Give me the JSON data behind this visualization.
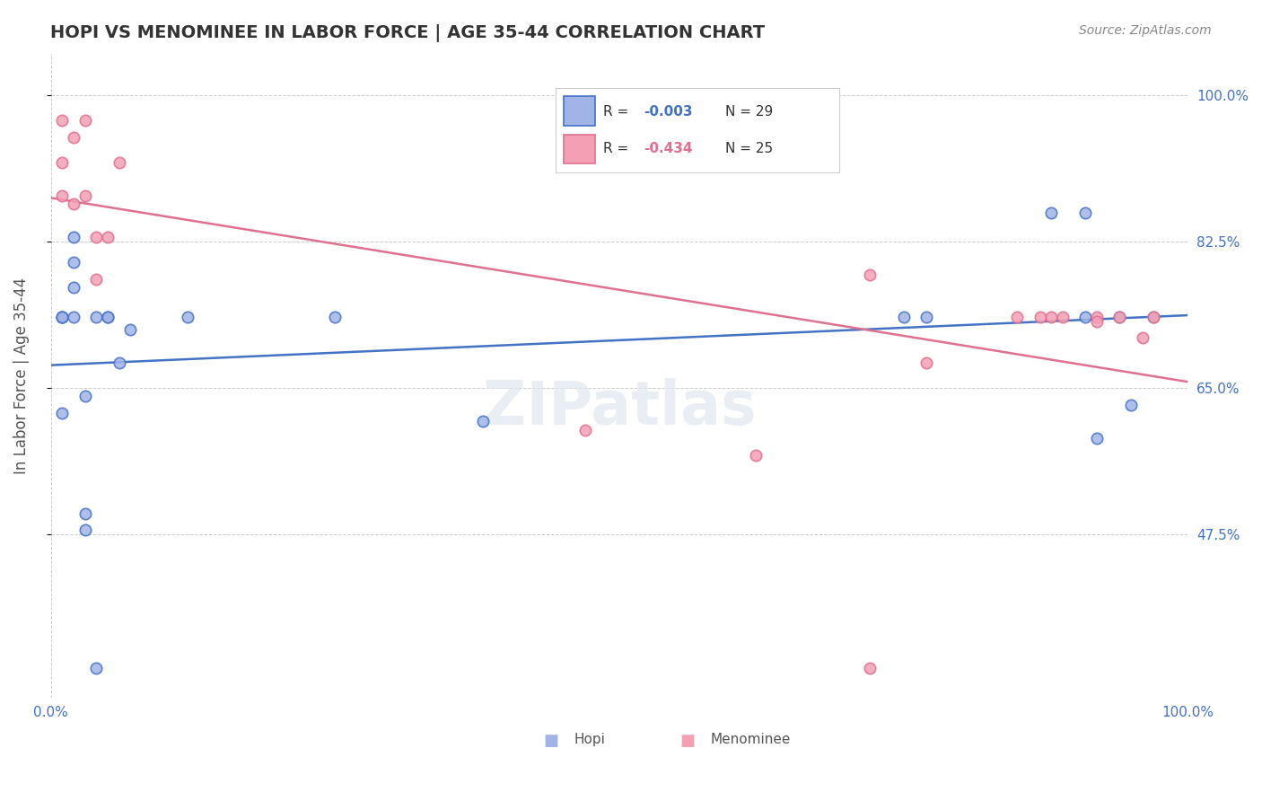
{
  "title": "HOPI VS MENOMINEE IN LABOR FORCE | AGE 35-44 CORRELATION CHART",
  "source_text": "Source: ZipAtlas.com",
  "ylabel": "In Labor Force | Age 35-44",
  "y_tick_labels": [
    "47.5%",
    "65.0%",
    "82.5%",
    "100.0%"
  ],
  "hopi_color": "#a0b4e8",
  "menominee_color": "#f4a0b4",
  "hopi_line_color": "#4472c4",
  "menominee_line_color": "#e07090",
  "grid_color": "#cccccc",
  "watermark": "ZIPatlas",
  "hopi_x": [
    0.01,
    0.01,
    0.01,
    0.01,
    0.02,
    0.02,
    0.02,
    0.02,
    0.03,
    0.03,
    0.03,
    0.04,
    0.04,
    0.05,
    0.05,
    0.06,
    0.07,
    0.12,
    0.25,
    0.38,
    0.75,
    0.77,
    0.88,
    0.91,
    0.91,
    0.92,
    0.94,
    0.95,
    0.97
  ],
  "hopi_y": [
    0.735,
    0.735,
    0.735,
    0.62,
    0.83,
    0.8,
    0.77,
    0.735,
    0.64,
    0.5,
    0.48,
    0.735,
    0.315,
    0.735,
    0.735,
    0.68,
    0.72,
    0.735,
    0.735,
    0.61,
    0.735,
    0.735,
    0.86,
    0.86,
    0.735,
    0.59,
    0.735,
    0.63,
    0.735
  ],
  "menominee_x": [
    0.01,
    0.01,
    0.01,
    0.02,
    0.02,
    0.03,
    0.03,
    0.04,
    0.04,
    0.05,
    0.06,
    0.47,
    0.62,
    0.72,
    0.72,
    0.77,
    0.85,
    0.87,
    0.88,
    0.89,
    0.92,
    0.92,
    0.94,
    0.96,
    0.97
  ],
  "menominee_y": [
    0.97,
    0.92,
    0.88,
    0.95,
    0.87,
    0.97,
    0.88,
    0.83,
    0.78,
    0.83,
    0.92,
    0.6,
    0.57,
    0.785,
    0.315,
    0.68,
    0.735,
    0.735,
    0.735,
    0.735,
    0.735,
    0.73,
    0.735,
    0.71,
    0.735
  ],
  "xlim": [
    0.0,
    1.0
  ],
  "ylim": [
    0.28,
    1.05
  ],
  "y_ticks": [
    0.475,
    0.65,
    0.825,
    1.0
  ],
  "bottom_labels": [
    "Hopi",
    "Menominee"
  ],
  "legend_r_hopi": "-0.003",
  "legend_n_hopi": "N = 29",
  "legend_r_menominee": "-0.434",
  "legend_n_menominee": "N = 25"
}
